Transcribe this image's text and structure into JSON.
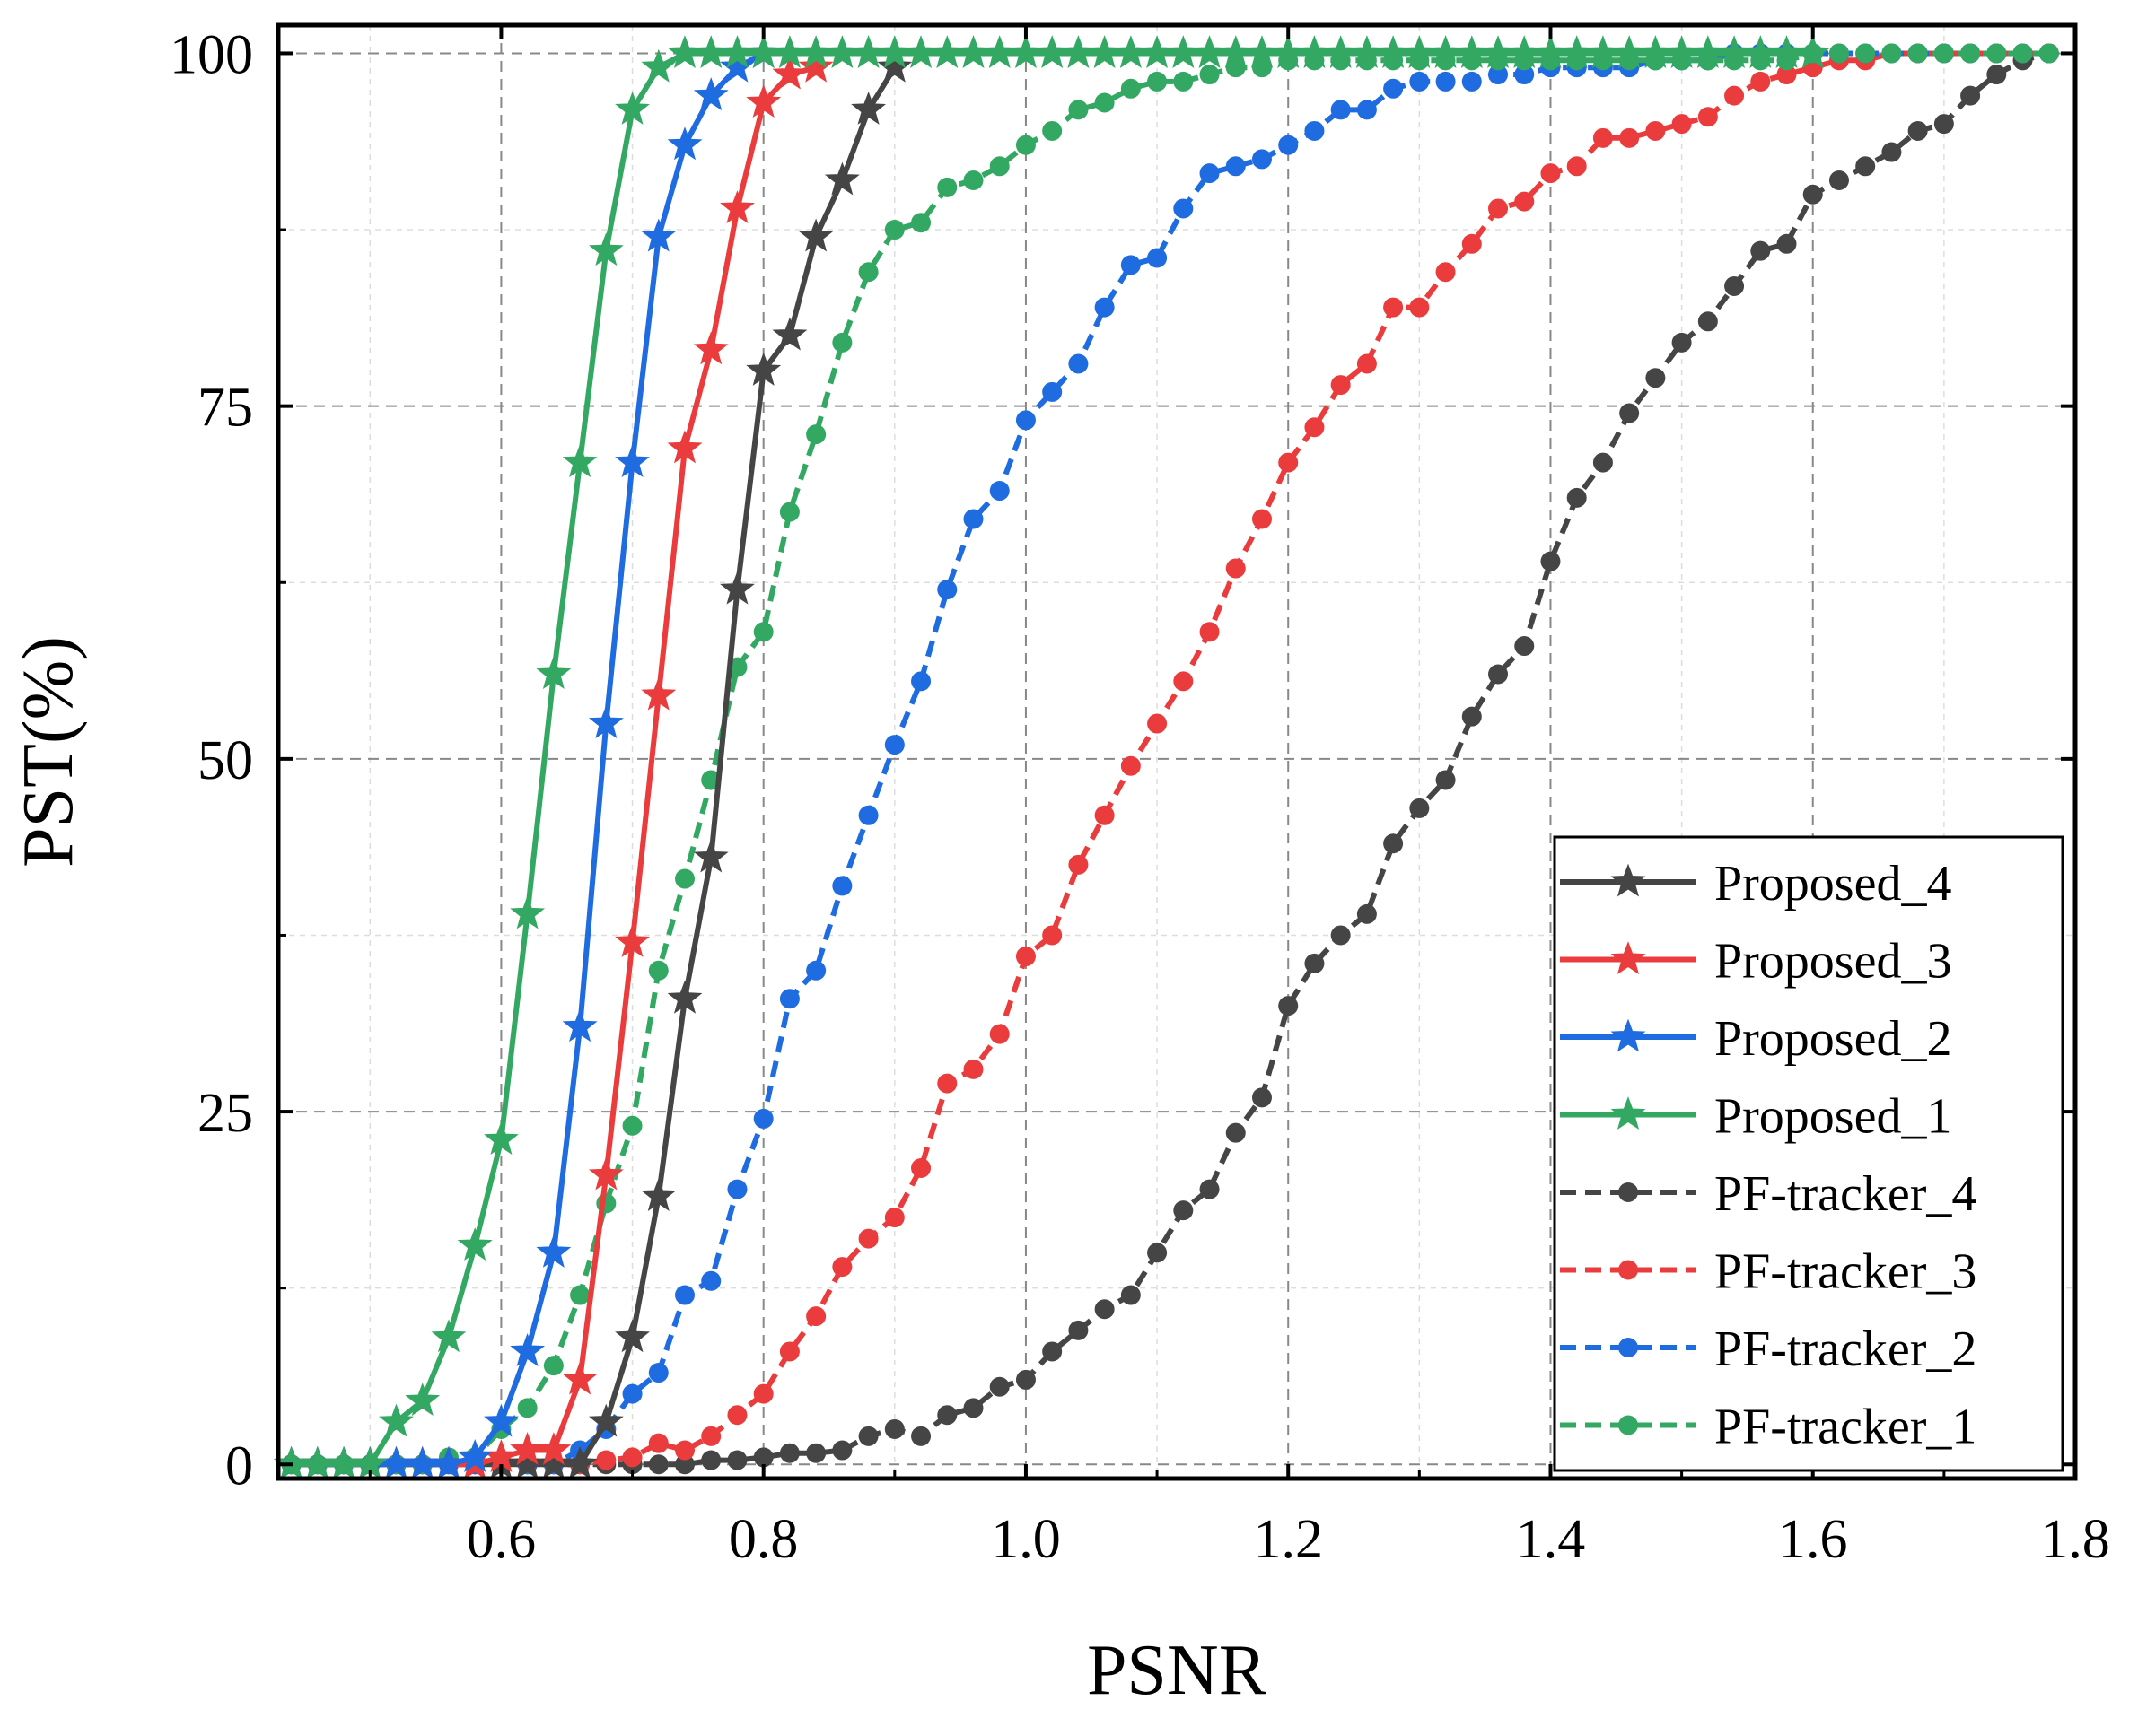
{
  "chart_data": {
    "type": "line",
    "xlabel": "PSNR",
    "ylabel": "PST(%)",
    "xlim": [
      0.43,
      1.8
    ],
    "ylim": [
      -1,
      102
    ],
    "x_ticks": [
      "0.6",
      "0.8",
      "1.0",
      "1.2",
      "1.4",
      "1.6",
      "1.8"
    ],
    "y_ticks": [
      "0",
      "25",
      "50",
      "75",
      "100"
    ],
    "grid": true,
    "legend_position": "bottom-right",
    "series": [
      {
        "name": "Proposed_4",
        "color": "#454545",
        "style": "solid",
        "marker": "star",
        "x": [
          0.44,
          0.46,
          0.48,
          0.5,
          0.52,
          0.54,
          0.56,
          0.58,
          0.6,
          0.62,
          0.64,
          0.66,
          0.68,
          0.7,
          0.72,
          0.74,
          0.76,
          0.78,
          0.8,
          0.82,
          0.84,
          0.86,
          0.88,
          0.9
        ],
        "y": [
          0,
          0,
          0,
          0,
          0,
          0,
          0,
          0,
          0,
          0,
          0,
          0,
          3,
          9,
          19,
          33,
          43,
          62,
          77.5,
          80,
          87,
          91,
          96,
          99
        ]
      },
      {
        "name": "Proposed_3",
        "color": "#ea3c3c",
        "style": "solid",
        "marker": "star",
        "x": [
          0.44,
          0.46,
          0.48,
          0.5,
          0.52,
          0.54,
          0.56,
          0.58,
          0.6,
          0.62,
          0.64,
          0.66,
          0.68,
          0.7,
          0.72,
          0.74,
          0.76,
          0.78,
          0.8,
          0.82,
          0.84
        ],
        "y": [
          0,
          0,
          0,
          0,
          0,
          0,
          0,
          0,
          0.5,
          1,
          1,
          6,
          20.5,
          37,
          54.5,
          72,
          79,
          89,
          96.5,
          98.5,
          99
        ]
      },
      {
        "name": "Proposed_2",
        "color": "#1f6be0",
        "style": "solid",
        "marker": "star",
        "x": [
          0.44,
          0.46,
          0.48,
          0.5,
          0.52,
          0.54,
          0.56,
          0.58,
          0.6,
          0.62,
          0.64,
          0.66,
          0.68,
          0.7,
          0.72,
          0.74,
          0.76,
          0.78,
          0.8
        ],
        "y": [
          0,
          0,
          0,
          0,
          0,
          0,
          0,
          0.5,
          3,
          8,
          15,
          31,
          52.5,
          71,
          87,
          93.5,
          97,
          99,
          100
        ]
      },
      {
        "name": "Proposed_1",
        "color": "#33a862",
        "style": "solid",
        "marker": "star",
        "x": [
          0.44,
          0.46,
          0.48,
          0.5,
          0.52,
          0.54,
          0.56,
          0.58,
          0.6,
          0.62,
          0.64,
          0.66,
          0.68,
          0.7,
          0.72,
          0.74,
          0.76,
          0.78,
          0.8,
          0.82,
          0.84,
          0.86,
          0.88,
          0.9,
          0.92,
          0.94,
          0.96,
          0.98,
          1.0,
          1.02,
          1.04,
          1.06,
          1.08,
          1.1,
          1.12,
          1.14,
          1.16,
          1.18,
          1.2,
          1.22,
          1.24,
          1.26,
          1.28,
          1.3,
          1.32,
          1.34,
          1.36,
          1.38,
          1.4,
          1.42,
          1.44,
          1.46,
          1.48,
          1.5,
          1.52,
          1.54,
          1.56,
          1.58,
          1.6
        ],
        "y": [
          0,
          0,
          0,
          0,
          3,
          4.5,
          9,
          15.5,
          23,
          39,
          56,
          71,
          86,
          96,
          99,
          100,
          100,
          100,
          100,
          100,
          100,
          100,
          100,
          100,
          100,
          100,
          100,
          100,
          100,
          100,
          100,
          100,
          100,
          100,
          100,
          100,
          100,
          100,
          100,
          100,
          100,
          100,
          100,
          100,
          100,
          100,
          100,
          100,
          100,
          100,
          100,
          100,
          100,
          100,
          100,
          100,
          100,
          100,
          100
        ]
      },
      {
        "name": "PF-tracker_4",
        "color": "#454545",
        "style": "dashed",
        "marker": "circle",
        "x": [
          0.44,
          0.46,
          0.48,
          0.5,
          0.52,
          0.54,
          0.56,
          0.58,
          0.6,
          0.62,
          0.64,
          0.66,
          0.68,
          0.7,
          0.72,
          0.74,
          0.76,
          0.78,
          0.8,
          0.82,
          0.84,
          0.86,
          0.88,
          0.9,
          0.92,
          0.94,
          0.96,
          0.98,
          1.0,
          1.02,
          1.04,
          1.06,
          1.08,
          1.1,
          1.12,
          1.14,
          1.16,
          1.18,
          1.2,
          1.22,
          1.24,
          1.26,
          1.28,
          1.3,
          1.32,
          1.34,
          1.36,
          1.38,
          1.4,
          1.42,
          1.44,
          1.46,
          1.48,
          1.5,
          1.52,
          1.54,
          1.56,
          1.58,
          1.6,
          1.62,
          1.64,
          1.66,
          1.68,
          1.7,
          1.72,
          1.74,
          1.76,
          1.78
        ],
        "y": [
          0,
          0,
          0,
          0,
          0,
          0,
          0,
          0,
          0,
          0,
          0,
          0,
          0,
          0,
          0,
          0,
          0.3,
          0.3,
          0.5,
          0.8,
          0.8,
          1,
          2,
          2.5,
          2,
          3.5,
          4,
          5.5,
          6,
          8,
          9.5,
          11,
          12,
          15,
          18,
          19.5,
          23.5,
          26,
          32.5,
          35.5,
          37.5,
          39,
          44,
          46.5,
          48.5,
          53,
          56,
          58,
          64,
          68.5,
          71,
          74.5,
          77,
          79.5,
          81,
          83.5,
          86,
          86.5,
          90,
          91,
          92,
          93,
          94.5,
          95,
          97,
          98.5,
          99.5,
          100
        ]
      },
      {
        "name": "PF-tracker_3",
        "color": "#ea3c3c",
        "style": "dashed",
        "marker": "circle",
        "x": [
          0.44,
          0.46,
          0.48,
          0.5,
          0.52,
          0.54,
          0.56,
          0.58,
          0.6,
          0.62,
          0.64,
          0.66,
          0.68,
          0.7,
          0.72,
          0.74,
          0.76,
          0.78,
          0.8,
          0.82,
          0.84,
          0.86,
          0.88,
          0.9,
          0.92,
          0.94,
          0.96,
          0.98,
          1.0,
          1.02,
          1.04,
          1.06,
          1.08,
          1.1,
          1.12,
          1.14,
          1.16,
          1.18,
          1.2,
          1.22,
          1.24,
          1.26,
          1.28,
          1.3,
          1.32,
          1.34,
          1.36,
          1.38,
          1.4,
          1.42,
          1.44,
          1.46,
          1.48,
          1.5,
          1.52,
          1.54,
          1.56,
          1.58,
          1.6,
          1.62,
          1.64,
          1.66,
          1.68,
          1.7,
          1.72,
          1.74,
          1.76,
          1.78
        ],
        "y": [
          0,
          0,
          0,
          0,
          0,
          0,
          0,
          0,
          0,
          0,
          0,
          0,
          0.3,
          0.5,
          1.5,
          1,
          2,
          3.5,
          5,
          8,
          10.5,
          14,
          16,
          17.5,
          21,
          27,
          28,
          30.5,
          36,
          37.5,
          42.5,
          46,
          49.5,
          52.5,
          55.5,
          59,
          63.5,
          67,
          71,
          73.5,
          76.5,
          78,
          82,
          82,
          84.5,
          86.5,
          89,
          89.5,
          91.5,
          92,
          94,
          94,
          94.5,
          95,
          95.5,
          97,
          98,
          98.5,
          99,
          99.5,
          99.5,
          100,
          100,
          100,
          100,
          100,
          100,
          100
        ]
      },
      {
        "name": "PF-tracker_2",
        "color": "#1f6be0",
        "style": "dashed",
        "marker": "circle",
        "x": [
          0.44,
          0.46,
          0.48,
          0.5,
          0.52,
          0.54,
          0.56,
          0.58,
          0.6,
          0.62,
          0.64,
          0.66,
          0.68,
          0.7,
          0.72,
          0.74,
          0.76,
          0.78,
          0.8,
          0.82,
          0.84,
          0.86,
          0.88,
          0.9,
          0.92,
          0.94,
          0.96,
          0.98,
          1.0,
          1.02,
          1.04,
          1.06,
          1.08,
          1.1,
          1.12,
          1.14,
          1.16,
          1.18,
          1.2,
          1.22,
          1.24,
          1.26,
          1.28,
          1.3,
          1.32,
          1.34,
          1.36,
          1.38,
          1.4,
          1.42,
          1.44,
          1.46,
          1.48,
          1.5,
          1.52,
          1.54,
          1.56,
          1.58,
          1.6,
          1.62,
          1.64,
          1.66,
          1.68,
          1.7,
          1.72,
          1.74,
          1.76,
          1.78
        ],
        "y": [
          0,
          0,
          0,
          0,
          0,
          0,
          0,
          0,
          0,
          0,
          0,
          1,
          2.5,
          5,
          6.5,
          12,
          13,
          19.5,
          24.5,
          33,
          35,
          41,
          46,
          51,
          55.5,
          62,
          67,
          69,
          74,
          76,
          78,
          82,
          85,
          85.5,
          89,
          91.5,
          92,
          92.5,
          93.5,
          94.5,
          96,
          96,
          97.5,
          98,
          98,
          98,
          98.5,
          98.5,
          99,
          99,
          99,
          99,
          99.5,
          99.5,
          99.5,
          100,
          100,
          100,
          100,
          100,
          100,
          100,
          100,
          100,
          100,
          100,
          100,
          100
        ]
      },
      {
        "name": "PF-tracker_1",
        "color": "#33a862",
        "style": "dashed",
        "marker": "circle",
        "x": [
          0.44,
          0.46,
          0.48,
          0.5,
          0.52,
          0.54,
          0.56,
          0.58,
          0.6,
          0.62,
          0.64,
          0.66,
          0.68,
          0.7,
          0.72,
          0.74,
          0.76,
          0.78,
          0.8,
          0.82,
          0.84,
          0.86,
          0.88,
          0.9,
          0.92,
          0.94,
          0.96,
          0.98,
          1.0,
          1.02,
          1.04,
          1.06,
          1.08,
          1.1,
          1.12,
          1.14,
          1.16,
          1.18,
          1.2,
          1.22,
          1.24,
          1.26,
          1.28,
          1.3,
          1.32,
          1.34,
          1.36,
          1.38,
          1.4,
          1.42,
          1.44,
          1.46,
          1.48,
          1.5,
          1.52,
          1.54,
          1.56,
          1.58,
          1.6,
          1.62,
          1.64,
          1.66,
          1.68,
          1.7,
          1.72,
          1.74,
          1.76,
          1.78
        ],
        "y": [
          0,
          0,
          0,
          0,
          0,
          0,
          0.5,
          0.5,
          2.5,
          4,
          7,
          12,
          18.5,
          24,
          35,
          41.5,
          48.5,
          56.5,
          59,
          67.5,
          73,
          79.5,
          84.5,
          87.5,
          88,
          90.5,
          91,
          92,
          93.5,
          94.5,
          96,
          96.5,
          97.5,
          98,
          98,
          98.5,
          99,
          99,
          99.5,
          99.5,
          99.5,
          99.5,
          99.5,
          99.5,
          99.5,
          99.5,
          99.5,
          99.5,
          99.5,
          99.5,
          99.5,
          99.5,
          99.5,
          99.5,
          99.5,
          99.5,
          99.5,
          99.5,
          100,
          100,
          100,
          100,
          100,
          100,
          100,
          100,
          100,
          100
        ]
      }
    ]
  }
}
